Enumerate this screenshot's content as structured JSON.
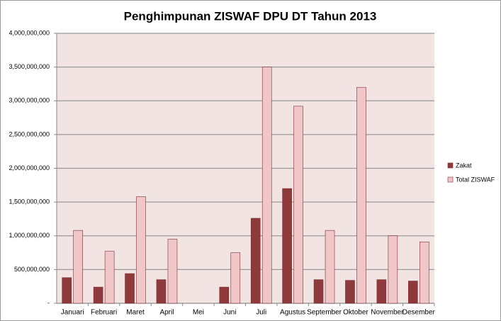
{
  "chart_data": {
    "type": "bar",
    "title": "Penghimpunan ZISWAF DPU DT Tahun 2013",
    "categories": [
      "Januari",
      "Februari",
      "Maret",
      "April",
      "Mei",
      "Juni",
      "Juli",
      "Agustus",
      "September",
      "Oktober",
      "November",
      "Desember"
    ],
    "series": [
      {
        "name": "Zakat",
        "color": "#8e3a3c",
        "values": [
          380000000,
          240000000,
          440000000,
          350000000,
          null,
          240000000,
          1260000000,
          1700000000,
          350000000,
          340000000,
          350000000,
          330000000
        ]
      },
      {
        "name": "Total ZISWAF",
        "color": "#f0c6c9",
        "values": [
          1080000000,
          770000000,
          1580000000,
          950000000,
          null,
          750000000,
          3500000000,
          2920000000,
          1080000000,
          3200000000,
          1000000000,
          910000000
        ]
      }
    ],
    "ylim": [
      0,
      4000000000
    ],
    "yticks": [
      {
        "value": 0,
        "label": "-"
      },
      {
        "value": 500000000,
        "label": "500,000,000"
      },
      {
        "value": 1000000000,
        "label": "1,000,000,000"
      },
      {
        "value": 1500000000,
        "label": "1,500,000,000"
      },
      {
        "value": 2000000000,
        "label": "2,000,000,000"
      },
      {
        "value": 2500000000,
        "label": "2,500,000,000"
      },
      {
        "value": 3000000000,
        "label": "3,000,000,000"
      },
      {
        "value": 3500000000,
        "label": "3,500,000,000"
      },
      {
        "value": 4000000000,
        "label": "4,000,000,000"
      }
    ],
    "grid": true,
    "legend": "right"
  }
}
